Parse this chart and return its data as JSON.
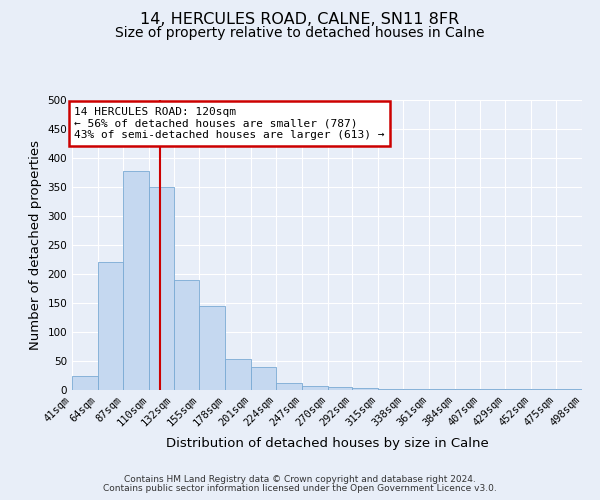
{
  "title_line1": "14, HERCULES ROAD, CALNE, SN11 8FR",
  "title_line2": "Size of property relative to detached houses in Calne",
  "xlabel": "Distribution of detached houses by size in Calne",
  "ylabel": "Number of detached properties",
  "bin_edges": [
    41,
    64,
    87,
    110,
    132,
    155,
    178,
    201,
    224,
    247,
    270,
    292,
    315,
    338,
    361,
    384,
    407,
    429,
    452,
    475,
    498
  ],
  "bar_heights": [
    25,
    220,
    378,
    350,
    190,
    145,
    53,
    40,
    12,
    7,
    5,
    4,
    2,
    1,
    1,
    1,
    1,
    1,
    1,
    1
  ],
  "bar_color": "#c5d8f0",
  "bar_edge_color": "#7aaad4",
  "vline_x": 120,
  "vline_color": "#cc0000",
  "annotation_title": "14 HERCULES ROAD: 120sqm",
  "annotation_line1": "← 56% of detached houses are smaller (787)",
  "annotation_line2": "43% of semi-detached houses are larger (613) →",
  "annotation_box_edge": "#cc0000",
  "ylim": [
    0,
    500
  ],
  "tick_labels": [
    "41sqm",
    "64sqm",
    "87sqm",
    "110sqm",
    "132sqm",
    "155sqm",
    "178sqm",
    "201sqm",
    "224sqm",
    "247sqm",
    "270sqm",
    "292sqm",
    "315sqm",
    "338sqm",
    "361sqm",
    "384sqm",
    "407sqm",
    "429sqm",
    "452sqm",
    "475sqm",
    "498sqm"
  ],
  "yticks": [
    0,
    50,
    100,
    150,
    200,
    250,
    300,
    350,
    400,
    450,
    500
  ],
  "footer_line1": "Contains HM Land Registry data © Crown copyright and database right 2024.",
  "footer_line2": "Contains public sector information licensed under the Open Government Licence v3.0.",
  "background_color": "#e8eef8",
  "grid_color": "#ffffff",
  "title_fontsize": 11.5,
  "subtitle_fontsize": 10,
  "axis_label_fontsize": 9.5,
  "tick_fontsize": 7.5,
  "annotation_fontsize": 8,
  "footer_fontsize": 6.5
}
